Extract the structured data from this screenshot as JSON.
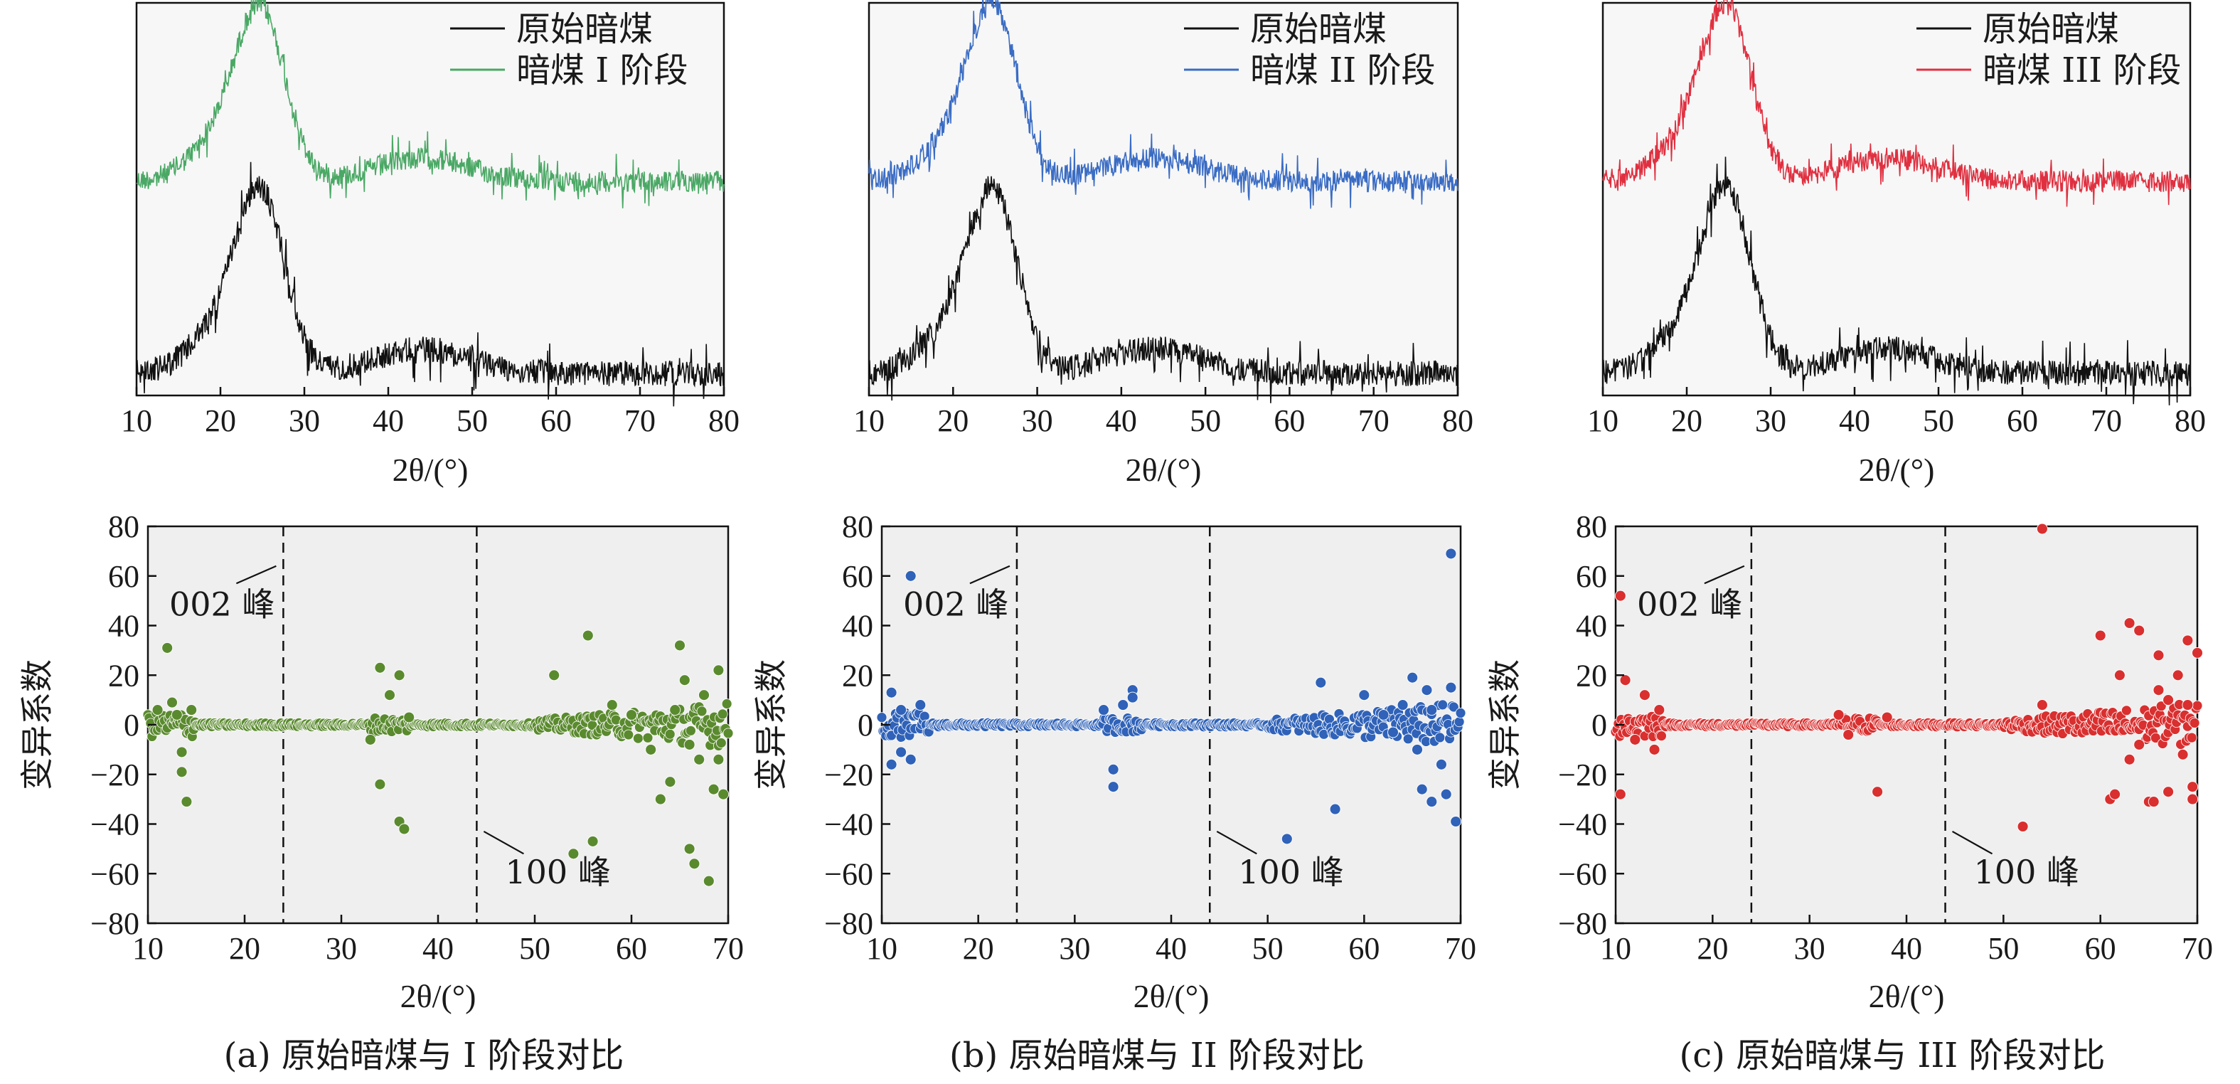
{
  "panels": [
    {
      "id": "a",
      "caption": "(a) 原始暗煤与 I 阶段对比",
      "accent": "#4aa865",
      "scatter_color": "#5a8a2e",
      "xrd": {
        "type": "line",
        "xlabel": "2θ/(°)",
        "xlim": [
          10,
          80
        ],
        "xticks": [
          10,
          20,
          30,
          40,
          50,
          60,
          70,
          80
        ],
        "legend": {
          "position": "top-right",
          "entries": [
            {
              "label": "原始暗煤",
              "color": "#111111"
            },
            {
              "label": "暗煤 I 阶段",
              "color": "#4aa865"
            }
          ]
        }
      },
      "cv": {
        "type": "scatter",
        "xlabel": "2θ/(°)",
        "ylabel": "变异系数",
        "xlim": [
          10,
          70
        ],
        "ylim": [
          -80,
          80
        ],
        "xticks": [
          10,
          20,
          30,
          40,
          50,
          60,
          70
        ],
        "yticks": [
          80,
          60,
          40,
          20,
          0,
          -20,
          -40,
          -60,
          -80
        ],
        "dashed_lines_x": [
          24,
          44
        ],
        "annotations": [
          "002 峰",
          "100 峰"
        ],
        "outliers": [
          [
            12,
            31
          ],
          [
            12.5,
            9
          ],
          [
            11,
            6
          ],
          [
            13.5,
            -11
          ],
          [
            13.5,
            -19
          ],
          [
            14,
            -31
          ],
          [
            14.5,
            6
          ],
          [
            13,
            4
          ],
          [
            34,
            23
          ],
          [
            34,
            -24
          ],
          [
            36,
            20
          ],
          [
            36,
            -39
          ],
          [
            36.5,
            -42
          ],
          [
            35,
            12
          ],
          [
            33,
            -6
          ],
          [
            37,
            3
          ],
          [
            52,
            20
          ],
          [
            54,
            -52
          ],
          [
            55.5,
            36
          ],
          [
            56,
            -47
          ],
          [
            58,
            8
          ],
          [
            63,
            -30
          ],
          [
            64,
            -23
          ],
          [
            65,
            32
          ],
          [
            66,
            -50
          ],
          [
            66.5,
            -56
          ],
          [
            67,
            -14
          ],
          [
            68,
            -63
          ],
          [
            68.5,
            -26
          ],
          [
            69,
            22
          ],
          [
            69.5,
            -28
          ],
          [
            65.5,
            18
          ],
          [
            67.5,
            12
          ],
          [
            62,
            -10
          ],
          [
            60,
            4
          ],
          [
            64.5,
            6
          ],
          [
            66,
            -8
          ],
          [
            69,
            -14
          ]
        ]
      }
    },
    {
      "id": "b",
      "caption": "(b) 原始暗煤与 II 阶段对比",
      "accent": "#3a6cc4",
      "scatter_color": "#2f62b8",
      "xrd": {
        "type": "line",
        "xlabel": "2θ/(°)",
        "xlim": [
          10,
          80
        ],
        "xticks": [
          10,
          20,
          30,
          40,
          50,
          60,
          70,
          80
        ],
        "legend": {
          "position": "top-right",
          "entries": [
            {
              "label": "原始暗煤",
              "color": "#111111"
            },
            {
              "label": "暗煤 II 阶段",
              "color": "#3a6cc4"
            }
          ]
        }
      },
      "cv": {
        "type": "scatter",
        "xlabel": "2θ/(°)",
        "ylabel": "变异系数",
        "xlim": [
          10,
          70
        ],
        "ylim": [
          -80,
          80
        ],
        "xticks": [
          10,
          20,
          30,
          40,
          50,
          60,
          70
        ],
        "yticks": [
          80,
          60,
          40,
          20,
          0,
          -20,
          -40,
          -60,
          -80
        ],
        "dashed_lines_x": [
          24,
          44
        ],
        "annotations": [
          "002 峰",
          "100 峰"
        ],
        "outliers": [
          [
            13,
            60
          ],
          [
            11,
            13
          ],
          [
            12,
            -11
          ],
          [
            11,
            -16
          ],
          [
            13,
            -14
          ],
          [
            14,
            8
          ],
          [
            12,
            6
          ],
          [
            34,
            -25
          ],
          [
            34,
            -18
          ],
          [
            36,
            14
          ],
          [
            36,
            11
          ],
          [
            35,
            8
          ],
          [
            33,
            6
          ],
          [
            52,
            -46
          ],
          [
            55.5,
            17
          ],
          [
            57,
            -34
          ],
          [
            60,
            12
          ],
          [
            63,
            -3
          ],
          [
            65,
            19
          ],
          [
            66,
            -26
          ],
          [
            67,
            -31
          ],
          [
            68,
            -16
          ],
          [
            68.5,
            -28
          ],
          [
            69,
            69
          ],
          [
            69.5,
            -39
          ],
          [
            69,
            15
          ],
          [
            66.5,
            14
          ],
          [
            64,
            8
          ],
          [
            65.5,
            -10
          ],
          [
            67,
            6
          ],
          [
            62,
            4
          ]
        ]
      }
    },
    {
      "id": "c",
      "caption": "(c) 原始暗煤与 III 阶段对比",
      "accent": "#e03040",
      "scatter_color": "#d92f2f",
      "xrd": {
        "type": "line",
        "xlabel": "2θ/(°)",
        "xlim": [
          10,
          80
        ],
        "xticks": [
          10,
          20,
          30,
          40,
          50,
          60,
          70,
          80
        ],
        "legend": {
          "position": "top-right",
          "entries": [
            {
              "label": "原始暗煤",
              "color": "#111111"
            },
            {
              "label": "暗煤 III 阶段",
              "color": "#e03040"
            }
          ]
        }
      },
      "cv": {
        "type": "scatter",
        "xlabel": "2θ/(°)",
        "ylabel": "变异系数",
        "xlim": [
          10,
          70
        ],
        "ylim": [
          -80,
          80
        ],
        "xticks": [
          10,
          20,
          30,
          40,
          50,
          60,
          70
        ],
        "yticks": [
          80,
          60,
          40,
          20,
          0,
          -20,
          -40,
          -60,
          -80
        ],
        "dashed_lines_x": [
          24,
          44
        ],
        "annotations": [
          "002 峰",
          "100 峰"
        ],
        "outliers": [
          [
            10.5,
            52
          ],
          [
            10.5,
            -28
          ],
          [
            11,
            18
          ],
          [
            13,
            12
          ],
          [
            14,
            -10
          ],
          [
            12,
            -6
          ],
          [
            14.5,
            6
          ],
          [
            33,
            4
          ],
          [
            34,
            -4
          ],
          [
            37,
            -27
          ],
          [
            38,
            3
          ],
          [
            52,
            -41
          ],
          [
            54,
            79
          ],
          [
            54,
            8
          ],
          [
            60,
            36
          ],
          [
            61,
            -30
          ],
          [
            61.5,
            -28
          ],
          [
            62,
            20
          ],
          [
            63,
            41
          ],
          [
            64,
            38
          ],
          [
            65,
            -31
          ],
          [
            65.5,
            -31
          ],
          [
            66,
            28
          ],
          [
            67,
            -27
          ],
          [
            68,
            20
          ],
          [
            68.5,
            -12
          ],
          [
            69,
            34
          ],
          [
            69.5,
            -30
          ],
          [
            69.5,
            -25
          ],
          [
            70,
            29
          ],
          [
            66,
            14
          ],
          [
            64,
            -8
          ],
          [
            67,
            10
          ],
          [
            63,
            -14
          ],
          [
            69,
            8
          ]
        ]
      }
    }
  ],
  "chart_data": [
    {
      "type": "line",
      "panel": "a-top",
      "xlabel": "2θ/(°)",
      "xlim": [
        10,
        80
      ],
      "series": [
        {
          "name": "原始暗煤",
          "peaks_deg": [
            25
          ]
        },
        {
          "name": "暗煤 I 阶段",
          "peaks_deg": [
            25
          ]
        }
      ]
    },
    {
      "type": "scatter",
      "panel": "a-bottom",
      "xlabel": "2θ/(°)",
      "ylabel": "变异系数",
      "xlim": [
        10,
        70
      ],
      "ylim": [
        -80,
        80
      ]
    },
    {
      "type": "line",
      "panel": "b-top",
      "xlabel": "2θ/(°)",
      "xlim": [
        10,
        80
      ],
      "series": [
        {
          "name": "原始暗煤",
          "peaks_deg": [
            25
          ]
        },
        {
          "name": "暗煤 II 阶段",
          "peaks_deg": [
            25
          ]
        }
      ]
    },
    {
      "type": "scatter",
      "panel": "b-bottom",
      "xlabel": "2θ/(°)",
      "ylabel": "变异系数",
      "xlim": [
        10,
        70
      ],
      "ylim": [
        -80,
        80
      ]
    },
    {
      "type": "line",
      "panel": "c-top",
      "xlabel": "2θ/(°)",
      "xlim": [
        10,
        80
      ],
      "series": [
        {
          "name": "原始暗煤",
          "peaks_deg": [
            25
          ]
        },
        {
          "name": "暗煤 III 阶段",
          "peaks_deg": [
            25
          ]
        }
      ]
    },
    {
      "type": "scatter",
      "panel": "c-bottom",
      "xlabel": "2θ/(°)",
      "ylabel": "变异系数",
      "xlim": [
        10,
        70
      ],
      "ylim": [
        -80,
        80
      ]
    }
  ]
}
